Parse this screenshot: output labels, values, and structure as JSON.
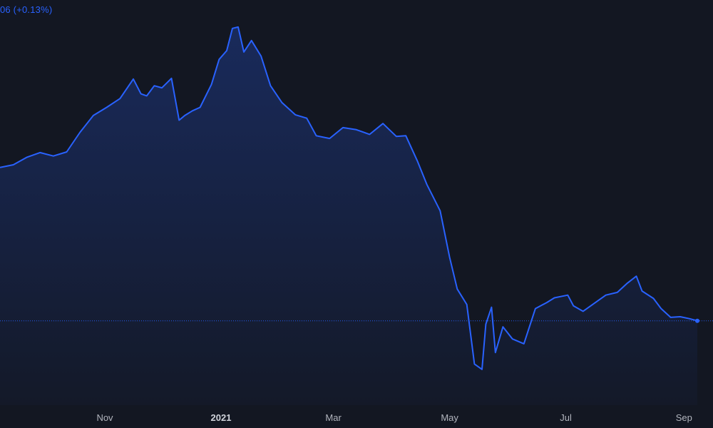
{
  "header": {
    "change_text": "06 (+0.13%)"
  },
  "colors": {
    "background": "#131722",
    "line": "#2962ff",
    "area_top": "#1e3a8a",
    "baseline": "#2962ff",
    "tick_text": "#b2b5be"
  },
  "chart_data": {
    "type": "area",
    "title": "",
    "xlabel": "",
    "ylabel": "",
    "grid": false,
    "legend": "none",
    "x_ticks": [
      {
        "label": "Nov",
        "date": "2020-11-01",
        "major": false
      },
      {
        "label": "2021",
        "date": "2021-01-01",
        "major": true
      },
      {
        "label": "Mar",
        "date": "2021-03-01",
        "major": false
      },
      {
        "label": "May",
        "date": "2021-05-01",
        "major": false
      },
      {
        "label": "Jul",
        "date": "2021-07-01",
        "major": false
      },
      {
        "label": "Sep",
        "date": "2021-09-01",
        "major": false
      }
    ],
    "x_range": [
      "2020-09-07",
      "2021-09-08"
    ],
    "y_range": [
      40,
      100
    ],
    "last_value": 52.5,
    "series": [
      {
        "values": [
          [
            "2020-09-07",
            75.2
          ],
          [
            "2020-09-14",
            75.6
          ],
          [
            "2020-09-21",
            76.7
          ],
          [
            "2020-09-28",
            77.4
          ],
          [
            "2020-10-05",
            76.9
          ],
          [
            "2020-10-12",
            77.5
          ],
          [
            "2020-10-19",
            80.4
          ],
          [
            "2020-10-26",
            82.9
          ],
          [
            "2020-11-02",
            84.1
          ],
          [
            "2020-11-09",
            85.4
          ],
          [
            "2020-11-16",
            88.3
          ],
          [
            "2020-11-20",
            86.1
          ],
          [
            "2020-11-23",
            85.8
          ],
          [
            "2020-11-27",
            87.3
          ],
          [
            "2020-12-01",
            87.0
          ],
          [
            "2020-12-06",
            88.4
          ],
          [
            "2020-12-10",
            82.2
          ],
          [
            "2020-12-13",
            82.9
          ],
          [
            "2020-12-17",
            83.6
          ],
          [
            "2020-12-21",
            84.1
          ],
          [
            "2020-12-27",
            87.5
          ],
          [
            "2020-12-31",
            91.2
          ],
          [
            "2021-01-04",
            92.5
          ],
          [
            "2021-01-07",
            95.8
          ],
          [
            "2021-01-10",
            96.0
          ],
          [
            "2021-01-13",
            92.3
          ],
          [
            "2021-01-17",
            94.0
          ],
          [
            "2021-01-22",
            91.7
          ],
          [
            "2021-01-27",
            87.3
          ],
          [
            "2021-02-02",
            84.8
          ],
          [
            "2021-02-09",
            83.0
          ],
          [
            "2021-02-15",
            82.5
          ],
          [
            "2021-02-20",
            79.9
          ],
          [
            "2021-02-27",
            79.5
          ],
          [
            "2021-03-06",
            81.1
          ],
          [
            "2021-03-13",
            80.8
          ],
          [
            "2021-03-20",
            80.1
          ],
          [
            "2021-03-27",
            81.7
          ],
          [
            "2021-04-03",
            79.8
          ],
          [
            "2021-04-08",
            79.9
          ],
          [
            "2021-04-14",
            76.2
          ],
          [
            "2021-04-19",
            72.7
          ],
          [
            "2021-04-26",
            68.8
          ],
          [
            "2021-05-01",
            61.9
          ],
          [
            "2021-05-05",
            57.2
          ],
          [
            "2021-05-10",
            54.9
          ],
          [
            "2021-05-14",
            46.1
          ],
          [
            "2021-05-18",
            45.3
          ],
          [
            "2021-05-20",
            52.0
          ],
          [
            "2021-05-23",
            54.5
          ],
          [
            "2021-05-25",
            47.8
          ],
          [
            "2021-05-29",
            51.6
          ],
          [
            "2021-06-03",
            49.8
          ],
          [
            "2021-06-09",
            49.1
          ],
          [
            "2021-06-15",
            54.3
          ],
          [
            "2021-06-21",
            55.2
          ],
          [
            "2021-06-25",
            55.9
          ],
          [
            "2021-07-02",
            56.3
          ],
          [
            "2021-07-05",
            54.7
          ],
          [
            "2021-07-10",
            53.9
          ],
          [
            "2021-07-16",
            55.1
          ],
          [
            "2021-07-22",
            56.3
          ],
          [
            "2021-07-28",
            56.7
          ],
          [
            "2021-08-02",
            58.0
          ],
          [
            "2021-08-07",
            59.1
          ],
          [
            "2021-08-10",
            56.9
          ],
          [
            "2021-08-16",
            55.8
          ],
          [
            "2021-08-20",
            54.3
          ],
          [
            "2021-08-25",
            53.0
          ],
          [
            "2021-08-30",
            53.1
          ],
          [
            "2021-09-04",
            52.8
          ],
          [
            "2021-09-08",
            52.5
          ]
        ]
      }
    ]
  }
}
